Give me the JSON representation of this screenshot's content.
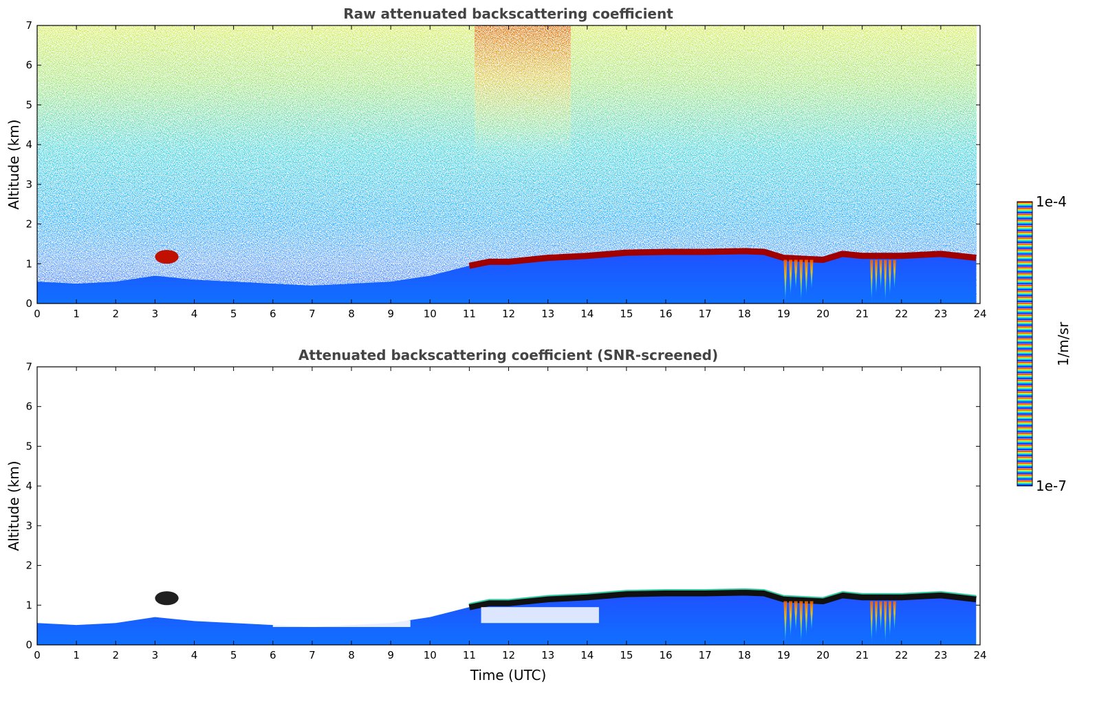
{
  "chart_data": [
    {
      "type": "heatmap",
      "title": "Raw attenuated backscattering coefficient",
      "xlabel": "",
      "ylabel": "Altitude (km)",
      "xlim": [
        0,
        24
      ],
      "ylim": [
        0,
        7
      ],
      "x_ticks": [
        "0",
        "1",
        "2",
        "3",
        "4",
        "5",
        "6",
        "7",
        "8",
        "9",
        "10",
        "11",
        "12",
        "13",
        "14",
        "15",
        "16",
        "17",
        "18",
        "19",
        "20",
        "21",
        "22",
        "23",
        "24"
      ],
      "y_ticks": [
        "0",
        "1",
        "2",
        "3",
        "4",
        "5",
        "6",
        "7"
      ],
      "x_data_extent": [
        0,
        23.9
      ],
      "boundary_layer_height_km": [
        [
          0,
          0.55
        ],
        [
          1,
          0.5
        ],
        [
          2,
          0.55
        ],
        [
          3,
          0.7
        ],
        [
          4,
          0.6
        ],
        [
          5,
          0.55
        ],
        [
          6,
          0.5
        ],
        [
          7,
          0.45
        ],
        [
          8,
          0.5
        ],
        [
          9,
          0.55
        ],
        [
          10,
          0.7
        ],
        [
          11,
          0.95
        ],
        [
          11.5,
          1.05
        ],
        [
          12,
          1.05
        ],
        [
          12.5,
          1.1
        ],
        [
          13,
          1.15
        ],
        [
          14,
          1.2
        ],
        [
          15,
          1.28
        ],
        [
          16,
          1.3
        ],
        [
          17,
          1.3
        ],
        [
          18,
          1.32
        ],
        [
          18.5,
          1.3
        ],
        [
          19,
          1.15
        ],
        [
          20,
          1.1
        ],
        [
          20.5,
          1.25
        ],
        [
          21,
          1.2
        ],
        [
          22,
          1.2
        ],
        [
          23,
          1.25
        ],
        [
          23.9,
          1.15
        ]
      ],
      "elevated_layer_time_3_to_3_6_km": [
        1.0,
        1.35
      ],
      "high_noise_period_utc": [
        11,
        14.5
      ]
    },
    {
      "type": "heatmap",
      "title": "Attenuated backscattering coefficient (SNR-screened)",
      "xlabel": "Time (UTC)",
      "ylabel": "Altitude (km)",
      "xlim": [
        0,
        24
      ],
      "ylim": [
        0,
        7
      ],
      "x_ticks": [
        "0",
        "1",
        "2",
        "3",
        "4",
        "5",
        "6",
        "7",
        "8",
        "9",
        "10",
        "11",
        "12",
        "13",
        "14",
        "15",
        "16",
        "17",
        "18",
        "19",
        "20",
        "21",
        "22",
        "23",
        "24"
      ],
      "y_ticks": [
        "0",
        "1",
        "2",
        "3",
        "4",
        "5",
        "6",
        "7"
      ],
      "x_data_extent": [
        0,
        23.9
      ]
    }
  ],
  "colorbar": {
    "label": "1/m/sr",
    "max_label": "1e-4",
    "min_label": "1e-7",
    "scale": "log",
    "colormap": "jet",
    "colors": [
      "#e8e8f8",
      "#b8b8f0",
      "#7f7fff",
      "#0000ff",
      "#0040ff",
      "#0080ff",
      "#00c0ff",
      "#10e8e0",
      "#60ff90",
      "#c0ff30",
      "#ffe000",
      "#ff9000",
      "#ff3000",
      "#c00000",
      "#800000"
    ]
  }
}
